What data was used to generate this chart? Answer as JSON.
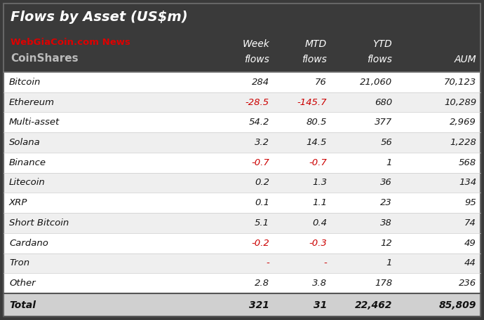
{
  "title": "Flows by Asset (US$m)",
  "watermark_red": "WebGiaCoin.com News",
  "watermark_gray": "CoinShares",
  "col_headers_line1": [
    "",
    "Week",
    "MTD",
    "YTD",
    ""
  ],
  "col_headers_line2": [
    "",
    "flows",
    "flows",
    "flows",
    "AUM"
  ],
  "rows": [
    [
      "Bitcoin",
      "284",
      "76",
      "21,060",
      "70,123"
    ],
    [
      "Ethereum",
      "-28.5",
      "-145.7",
      "680",
      "10,289"
    ],
    [
      "Multi-asset",
      "54.2",
      "80.5",
      "377",
      "2,969"
    ],
    [
      "Solana",
      "3.2",
      "14.5",
      "56",
      "1,228"
    ],
    [
      "Binance",
      "-0.7",
      "-0.7",
      "1",
      "568"
    ],
    [
      "Litecoin",
      "0.2",
      "1.3",
      "36",
      "134"
    ],
    [
      "XRP",
      "0.1",
      "1.1",
      "23",
      "95"
    ],
    [
      "Short Bitcoin",
      "5.1",
      "0.4",
      "38",
      "74"
    ],
    [
      "Cardano",
      "-0.2",
      "-0.3",
      "12",
      "49"
    ],
    [
      "Tron",
      "-",
      "-",
      "1",
      "44"
    ],
    [
      "Other",
      "2.8",
      "3.8",
      "178",
      "236"
    ]
  ],
  "total_row": [
    "Total",
    "321",
    "31",
    "22,462",
    "85,809"
  ],
  "negative_color": "#cc0000",
  "positive_color": "#1a1a1a",
  "header_bg": "#3a3a3a",
  "header_text": "#ffffff",
  "row_bg_white": "#ffffff",
  "row_bg_gray": "#efefef",
  "total_bg": "#d0d0d0",
  "border_color": "#888888",
  "outer_bg": "#3a3a3a"
}
